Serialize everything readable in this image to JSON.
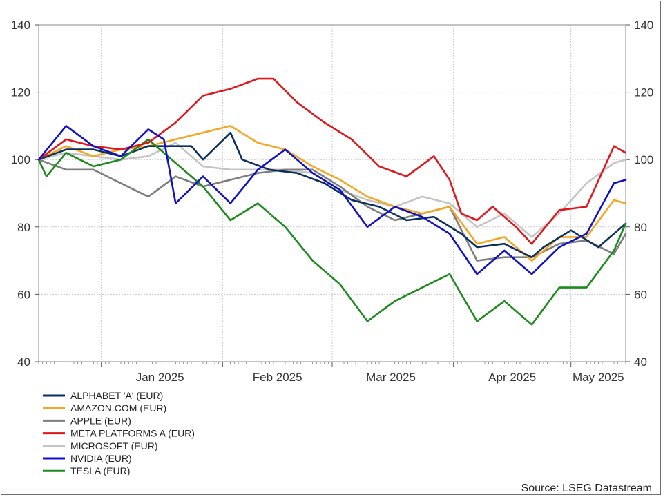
{
  "chart_data": {
    "type": "line",
    "title": "",
    "xlabel": "",
    "ylabel": "",
    "ylim": [
      40,
      140
    ],
    "yticks": [
      40,
      60,
      80,
      100,
      120,
      140
    ],
    "y_axis_sides": "both",
    "xlim": [
      "2024-12-16",
      "2025-05-15"
    ],
    "month_labels": [
      {
        "label": "Jan 2025",
        "date": "2025-01-16"
      },
      {
        "label": "Feb 2025",
        "date": "2025-02-15"
      },
      {
        "label": "Mar 2025",
        "date": "2025-03-16"
      },
      {
        "label": "Apr 2025",
        "date": "2025-04-16"
      },
      {
        "label": "May 2025",
        "date": "2025-05-08"
      }
    ],
    "month_boundaries": [
      "2025-01-01",
      "2025-02-01",
      "2025-03-01",
      "2025-04-01",
      "2025-05-01"
    ],
    "grid": true,
    "legend_position": "bottom-left",
    "series": [
      {
        "name": "ALPHABET 'A' (EUR)",
        "color": "#0b2f5c",
        "points": [
          [
            "2024-12-16",
            100
          ],
          [
            "2024-12-23",
            103
          ],
          [
            "2024-12-30",
            103
          ],
          [
            "2025-01-06",
            101
          ],
          [
            "2025-01-13",
            104
          ],
          [
            "2025-01-20",
            104
          ],
          [
            "2025-01-24",
            104
          ],
          [
            "2025-01-27",
            100
          ],
          [
            "2025-02-03",
            108
          ],
          [
            "2025-02-06",
            100
          ],
          [
            "2025-02-13",
            97
          ],
          [
            "2025-02-20",
            96
          ],
          [
            "2025-02-27",
            93
          ],
          [
            "2025-03-06",
            88
          ],
          [
            "2025-03-13",
            86
          ],
          [
            "2025-03-20",
            82
          ],
          [
            "2025-03-27",
            83
          ],
          [
            "2025-04-03",
            78
          ],
          [
            "2025-04-07",
            74
          ],
          [
            "2025-04-14",
            75
          ],
          [
            "2025-04-21",
            71
          ],
          [
            "2025-04-24",
            74
          ],
          [
            "2025-05-01",
            79
          ],
          [
            "2025-05-08",
            74
          ],
          [
            "2025-05-15",
            81
          ]
        ]
      },
      {
        "name": "AMAZON.COM (EUR)",
        "color": "#f5a623",
        "points": [
          [
            "2024-12-16",
            100
          ],
          [
            "2024-12-23",
            104
          ],
          [
            "2024-12-30",
            101
          ],
          [
            "2025-01-06",
            103
          ],
          [
            "2025-01-13",
            104
          ],
          [
            "2025-01-20",
            106
          ],
          [
            "2025-01-27",
            108
          ],
          [
            "2025-02-03",
            110
          ],
          [
            "2025-02-10",
            105
          ],
          [
            "2025-02-17",
            103
          ],
          [
            "2025-02-24",
            98
          ],
          [
            "2025-03-03",
            94
          ],
          [
            "2025-03-10",
            89
          ],
          [
            "2025-03-17",
            86
          ],
          [
            "2025-03-24",
            84
          ],
          [
            "2025-03-31",
            86
          ],
          [
            "2025-04-07",
            75
          ],
          [
            "2025-04-14",
            77
          ],
          [
            "2025-04-21",
            70
          ],
          [
            "2025-04-28",
            77
          ],
          [
            "2025-05-05",
            77
          ],
          [
            "2025-05-12",
            88
          ],
          [
            "2025-05-15",
            87
          ]
        ]
      },
      {
        "name": "APPLE (EUR)",
        "color": "#7d7d7d",
        "points": [
          [
            "2024-12-16",
            100
          ],
          [
            "2024-12-23",
            97
          ],
          [
            "2024-12-30",
            97
          ],
          [
            "2025-01-06",
            93
          ],
          [
            "2025-01-13",
            89
          ],
          [
            "2025-01-20",
            95
          ],
          [
            "2025-01-27",
            92
          ],
          [
            "2025-02-03",
            94
          ],
          [
            "2025-02-10",
            96
          ],
          [
            "2025-02-17",
            97
          ],
          [
            "2025-02-24",
            97
          ],
          [
            "2025-03-03",
            92
          ],
          [
            "2025-03-10",
            86
          ],
          [
            "2025-03-17",
            82
          ],
          [
            "2025-03-24",
            84
          ],
          [
            "2025-03-31",
            86
          ],
          [
            "2025-04-07",
            70
          ],
          [
            "2025-04-14",
            71
          ],
          [
            "2025-04-21",
            71
          ],
          [
            "2025-04-28",
            75
          ],
          [
            "2025-05-05",
            76
          ],
          [
            "2025-05-12",
            72
          ],
          [
            "2025-05-15",
            78
          ]
        ]
      },
      {
        "name": "META PLATFORMS A (EUR)",
        "color": "#e0161b",
        "points": [
          [
            "2024-12-16",
            100
          ],
          [
            "2024-12-23",
            106
          ],
          [
            "2024-12-30",
            104
          ],
          [
            "2025-01-06",
            103
          ],
          [
            "2025-01-13",
            105
          ],
          [
            "2025-01-20",
            111
          ],
          [
            "2025-01-27",
            119
          ],
          [
            "2025-02-03",
            121
          ],
          [
            "2025-02-10",
            124
          ],
          [
            "2025-02-14",
            124
          ],
          [
            "2025-02-20",
            117
          ],
          [
            "2025-02-27",
            111
          ],
          [
            "2025-03-06",
            106
          ],
          [
            "2025-03-13",
            98
          ],
          [
            "2025-03-20",
            95
          ],
          [
            "2025-03-27",
            101
          ],
          [
            "2025-03-31",
            94
          ],
          [
            "2025-04-03",
            84
          ],
          [
            "2025-04-07",
            82
          ],
          [
            "2025-04-11",
            86
          ],
          [
            "2025-04-17",
            80
          ],
          [
            "2025-04-21",
            75
          ],
          [
            "2025-04-28",
            85
          ],
          [
            "2025-05-05",
            86
          ],
          [
            "2025-05-12",
            104
          ],
          [
            "2025-05-15",
            102
          ]
        ]
      },
      {
        "name": "MICROSOFT (EUR)",
        "color": "#c4c4c4",
        "points": [
          [
            "2024-12-16",
            100
          ],
          [
            "2024-12-23",
            102
          ],
          [
            "2024-12-30",
            101
          ],
          [
            "2025-01-06",
            100
          ],
          [
            "2025-01-13",
            101
          ],
          [
            "2025-01-20",
            105
          ],
          [
            "2025-01-27",
            98
          ],
          [
            "2025-02-03",
            97
          ],
          [
            "2025-02-10",
            97
          ],
          [
            "2025-02-17",
            97
          ],
          [
            "2025-02-24",
            96
          ],
          [
            "2025-03-03",
            91
          ],
          [
            "2025-03-10",
            88
          ],
          [
            "2025-03-17",
            86
          ],
          [
            "2025-03-24",
            89
          ],
          [
            "2025-03-31",
            87
          ],
          [
            "2025-04-07",
            80
          ],
          [
            "2025-04-14",
            84
          ],
          [
            "2025-04-21",
            77
          ],
          [
            "2025-04-28",
            84
          ],
          [
            "2025-05-05",
            93
          ],
          [
            "2025-05-12",
            99
          ],
          [
            "2025-05-15",
            100
          ]
        ]
      },
      {
        "name": "NVIDIA (EUR)",
        "color": "#1010c8",
        "points": [
          [
            "2024-12-16",
            100
          ],
          [
            "2024-12-23",
            110
          ],
          [
            "2024-12-30",
            104
          ],
          [
            "2025-01-06",
            101
          ],
          [
            "2025-01-13",
            109
          ],
          [
            "2025-01-17",
            106
          ],
          [
            "2025-01-20",
            87
          ],
          [
            "2025-01-27",
            95
          ],
          [
            "2025-02-03",
            87
          ],
          [
            "2025-02-10",
            97
          ],
          [
            "2025-02-17",
            103
          ],
          [
            "2025-02-24",
            96
          ],
          [
            "2025-03-03",
            91
          ],
          [
            "2025-03-10",
            80
          ],
          [
            "2025-03-17",
            86
          ],
          [
            "2025-03-24",
            83
          ],
          [
            "2025-03-31",
            78
          ],
          [
            "2025-04-07",
            66
          ],
          [
            "2025-04-14",
            73
          ],
          [
            "2025-04-21",
            66
          ],
          [
            "2025-04-28",
            74
          ],
          [
            "2025-05-05",
            78
          ],
          [
            "2025-05-12",
            93
          ],
          [
            "2025-05-15",
            94
          ]
        ]
      },
      {
        "name": "TESLA (EUR)",
        "color": "#1d8a1d",
        "points": [
          [
            "2024-12-16",
            100
          ],
          [
            "2024-12-18",
            95
          ],
          [
            "2024-12-23",
            102
          ],
          [
            "2024-12-30",
            98
          ],
          [
            "2025-01-06",
            100
          ],
          [
            "2025-01-13",
            106
          ],
          [
            "2025-01-20",
            99
          ],
          [
            "2025-01-27",
            92
          ],
          [
            "2025-02-03",
            82
          ],
          [
            "2025-02-10",
            87
          ],
          [
            "2025-02-17",
            80
          ],
          [
            "2025-02-24",
            70
          ],
          [
            "2025-03-03",
            63
          ],
          [
            "2025-03-10",
            52
          ],
          [
            "2025-03-17",
            58
          ],
          [
            "2025-03-24",
            62
          ],
          [
            "2025-03-31",
            66
          ],
          [
            "2025-04-07",
            52
          ],
          [
            "2025-04-14",
            58
          ],
          [
            "2025-04-21",
            51
          ],
          [
            "2025-04-28",
            62
          ],
          [
            "2025-05-05",
            62
          ],
          [
            "2025-05-12",
            73
          ],
          [
            "2025-05-15",
            81
          ]
        ]
      }
    ],
    "source": "Source: LSEG Datastream"
  }
}
